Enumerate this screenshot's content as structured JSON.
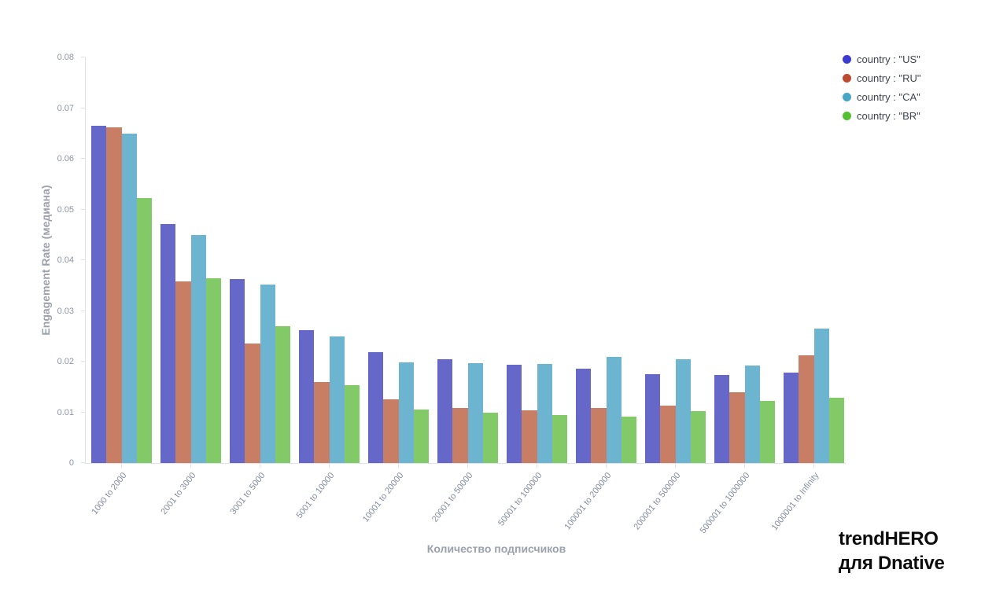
{
  "chart_data": {
    "type": "bar",
    "title": "",
    "xlabel": "Количество подписчиков",
    "ylabel": "Engagement Rate (медиана)",
    "ylim": [
      0,
      0.08
    ],
    "grid": false,
    "legend_position": "top-right",
    "y_ticks": [
      "0",
      "0.01",
      "0.02",
      "0.03",
      "0.04",
      "0.05",
      "0.06",
      "0.07",
      "0.08"
    ],
    "y_tick_values": [
      0,
      0.01,
      0.02,
      0.03,
      0.04,
      0.05,
      0.06,
      0.07,
      0.08
    ],
    "categories": [
      "1000 to 2000",
      "2001 to 3000",
      "3001 to 5000",
      "5001 to 10000",
      "10001 to 20000",
      "20001 to 50000",
      "50001 to 100000",
      "100001 to 200000",
      "200001 to 500000",
      "500001 to 1000000",
      "1000001 to Infinity"
    ],
    "series": [
      {
        "name": "US",
        "legend_label": "country : \"US\"",
        "color": "#6567c9",
        "dot_color": "#3b3bd1",
        "values": [
          0.0665,
          0.0471,
          0.0363,
          0.0262,
          0.0218,
          0.0204,
          0.0194,
          0.0186,
          0.0175,
          0.0173,
          0.0178
        ]
      },
      {
        "name": "RU",
        "legend_label": "country : \"RU\"",
        "color": "#c87e64",
        "dot_color": "#bd4b30",
        "values": [
          0.0662,
          0.0358,
          0.0235,
          0.016,
          0.0125,
          0.0108,
          0.0104,
          0.0108,
          0.0113,
          0.0139,
          0.0213
        ]
      },
      {
        "name": "CA",
        "legend_label": "country : \"CA\"",
        "color": "#6db4d0",
        "dot_color": "#47a5c6",
        "values": [
          0.0649,
          0.045,
          0.0352,
          0.025,
          0.0199,
          0.0197,
          0.0195,
          0.0209,
          0.0204,
          0.0193,
          0.0265
        ]
      },
      {
        "name": "BR",
        "legend_label": "country : \"BR\"",
        "color": "#82ca67",
        "dot_color": "#55bf31",
        "values": [
          0.0523,
          0.0364,
          0.027,
          0.0154,
          0.0106,
          0.0099,
          0.0095,
          0.0092,
          0.0102,
          0.0122,
          0.0129
        ]
      }
    ]
  },
  "watermark": {
    "line1": "trendHERO",
    "line2": "для Dnative"
  }
}
